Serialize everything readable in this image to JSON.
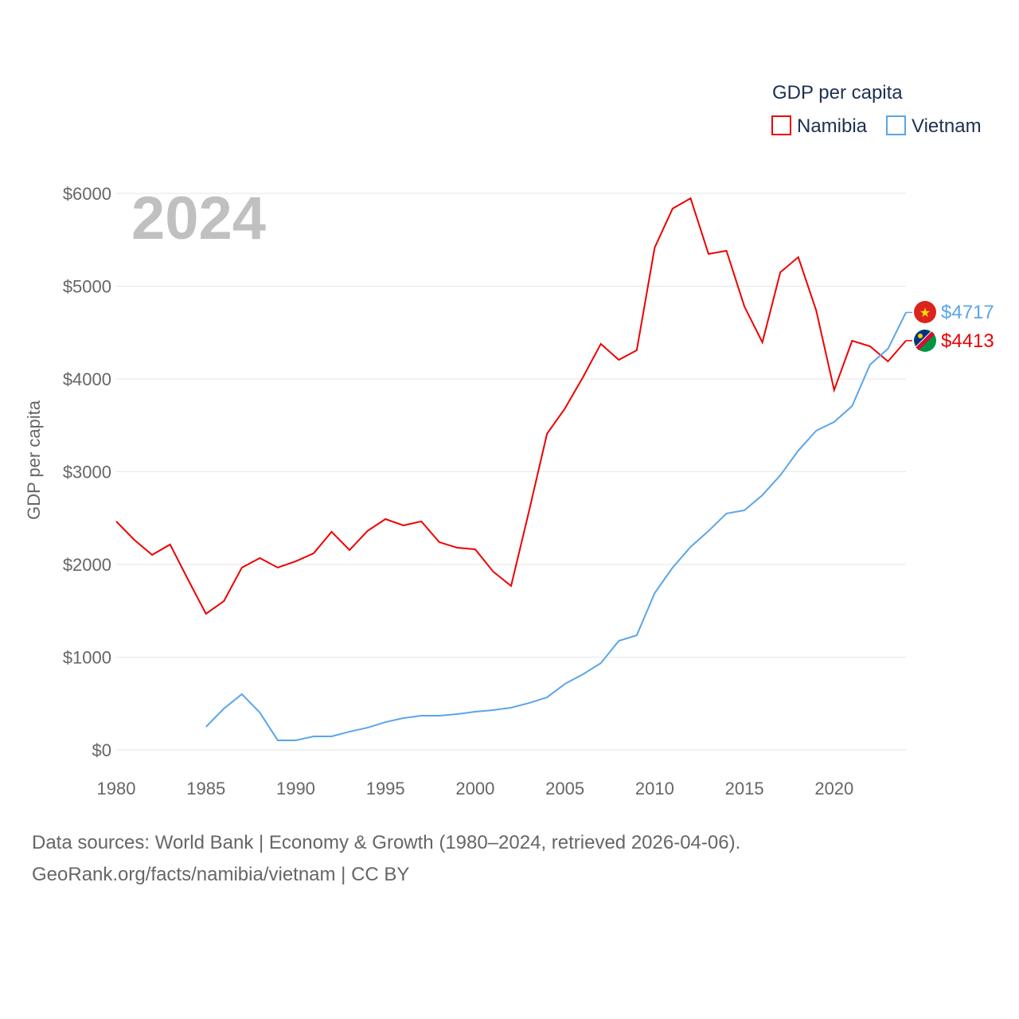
{
  "chart_data": {
    "type": "line",
    "title": "GDP per capita",
    "year_label": "2024",
    "xlabel": "",
    "ylabel": "GDP per capita",
    "xlim": [
      1980,
      2024
    ],
    "ylim": [
      0,
      6000
    ],
    "x_ticks": [
      1980,
      1985,
      1990,
      1995,
      2000,
      2005,
      2010,
      2015,
      2020
    ],
    "y_ticks": [
      0,
      1000,
      2000,
      3000,
      4000,
      5000,
      6000
    ],
    "y_tick_labels": [
      "$0",
      "$1000",
      "$2000",
      "$3000",
      "$4000",
      "$5000",
      "$6000"
    ],
    "grid": true,
    "legend_position": "top-right",
    "series": [
      {
        "name": "Namibia",
        "color": "#ee0000",
        "end_label": "$4413",
        "x": [
          1980,
          1981,
          1982,
          1983,
          1984,
          1985,
          1986,
          1987,
          1988,
          1989,
          1990,
          1991,
          1992,
          1993,
          1994,
          1995,
          1996,
          1997,
          1998,
          1999,
          2000,
          2001,
          2002,
          2003,
          2004,
          2005,
          2006,
          2007,
          2008,
          2009,
          2010,
          2011,
          2012,
          2013,
          2014,
          2015,
          2016,
          2017,
          2018,
          2019,
          2020,
          2021,
          2022,
          2023,
          2024
        ],
        "values": [
          2464,
          2266,
          2103,
          2215,
          1837,
          1468,
          1605,
          1966,
          2069,
          1966,
          2034,
          2120,
          2352,
          2155,
          2361,
          2489,
          2421,
          2464,
          2240,
          2180,
          2163,
          1923,
          1768,
          2575,
          3408,
          3682,
          4017,
          4378,
          4206,
          4309,
          5416,
          5837,
          5948,
          5348,
          5382,
          4781,
          4395,
          5150,
          5313,
          4738,
          3880,
          4412,
          4352,
          4189,
          4413
        ]
      },
      {
        "name": "Vietnam",
        "color": "#5aa5ea",
        "end_label": "$4717",
        "x": [
          1985,
          1986,
          1987,
          1988,
          1989,
          1990,
          1991,
          1992,
          1993,
          1994,
          1995,
          1996,
          1997,
          1998,
          1999,
          2000,
          2001,
          2002,
          2003,
          2004,
          2005,
          2006,
          2007,
          2008,
          2009,
          2010,
          2011,
          2012,
          2013,
          2014,
          2015,
          2016,
          2017,
          2018,
          2019,
          2020,
          2021,
          2022,
          2023,
          2024
        ],
        "values": [
          249,
          446,
          601,
          403,
          103,
          103,
          146,
          146,
          197,
          240,
          300,
          343,
          369,
          369,
          386,
          412,
          429,
          455,
          506,
          567,
          712,
          815,
          936,
          1176,
          1236,
          1691,
          1966,
          2189,
          2361,
          2549,
          2584,
          2747,
          2961,
          3227,
          3442,
          3536,
          3708,
          4155,
          4326,
          4717
        ]
      }
    ]
  },
  "footer": {
    "line1": "Data sources: World Bank | Economy & Growth (1980–2024, retrieved 2026-04-06).",
    "line2": "GeoRank.org/facts/namibia/vietnam | CC BY"
  }
}
